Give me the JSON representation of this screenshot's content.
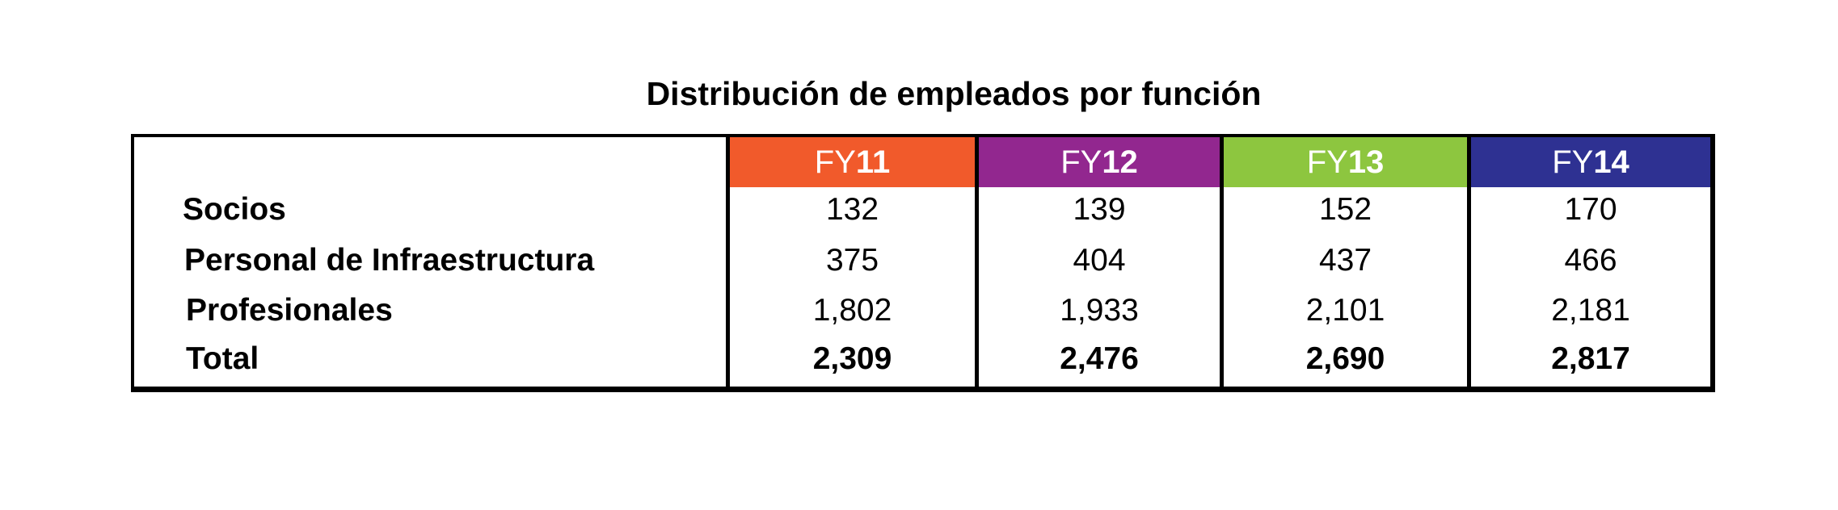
{
  "chart_data": {
    "type": "table",
    "title": "Distribución de empleados por función",
    "columns": [
      {
        "prefix": "FY",
        "number": "11",
        "color": "#F15A2B"
      },
      {
        "prefix": "FY",
        "number": "12",
        "color": "#92278F"
      },
      {
        "prefix": "FY",
        "number": "13",
        "color": "#8DC63F"
      },
      {
        "prefix": "FY",
        "number": "14",
        "color": "#2E3192"
      }
    ],
    "rows": [
      {
        "label": "Socios",
        "values": [
          "132",
          "139",
          "152",
          "170"
        ]
      },
      {
        "label": "Personal de Infraestructura",
        "values": [
          "375",
          "404",
          "437",
          "466"
        ]
      },
      {
        "label": "Profesionales",
        "values": [
          "1,802",
          "1,933",
          "2,101",
          "2,181"
        ]
      },
      {
        "label": "Total",
        "values": [
          "2,309",
          "2,476",
          "2,690",
          "2,817"
        ]
      }
    ]
  }
}
